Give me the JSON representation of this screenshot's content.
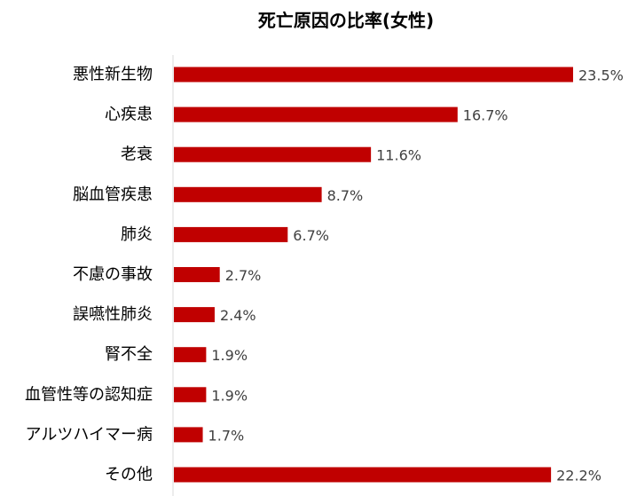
{
  "chart_data": {
    "type": "bar",
    "orientation": "horizontal",
    "title": "死亡原因の比率(女性)",
    "categories": [
      "悪性新生物",
      "心疾患",
      "老衰",
      "脳血管疾患",
      "肺炎",
      "不慮の事故",
      "誤嚥性肺炎",
      "腎不全",
      "血管性等の認知症",
      "アルツハイマー病",
      "その他"
    ],
    "values": [
      23.5,
      16.7,
      11.6,
      8.7,
      6.7,
      2.7,
      2.4,
      1.9,
      1.9,
      1.7,
      22.2
    ],
    "value_labels": [
      "23.5%",
      "16.7%",
      "11.6%",
      "8.7%",
      "6.7%",
      "2.7%",
      "2.4%",
      "1.9%",
      "1.9%",
      "1.7%",
      "22.2%"
    ],
    "xlim": [
      0,
      25
    ],
    "grid": false,
    "legend": "none",
    "bar_color": "#c00000",
    "axis_line_color": "#d9d9d9"
  }
}
